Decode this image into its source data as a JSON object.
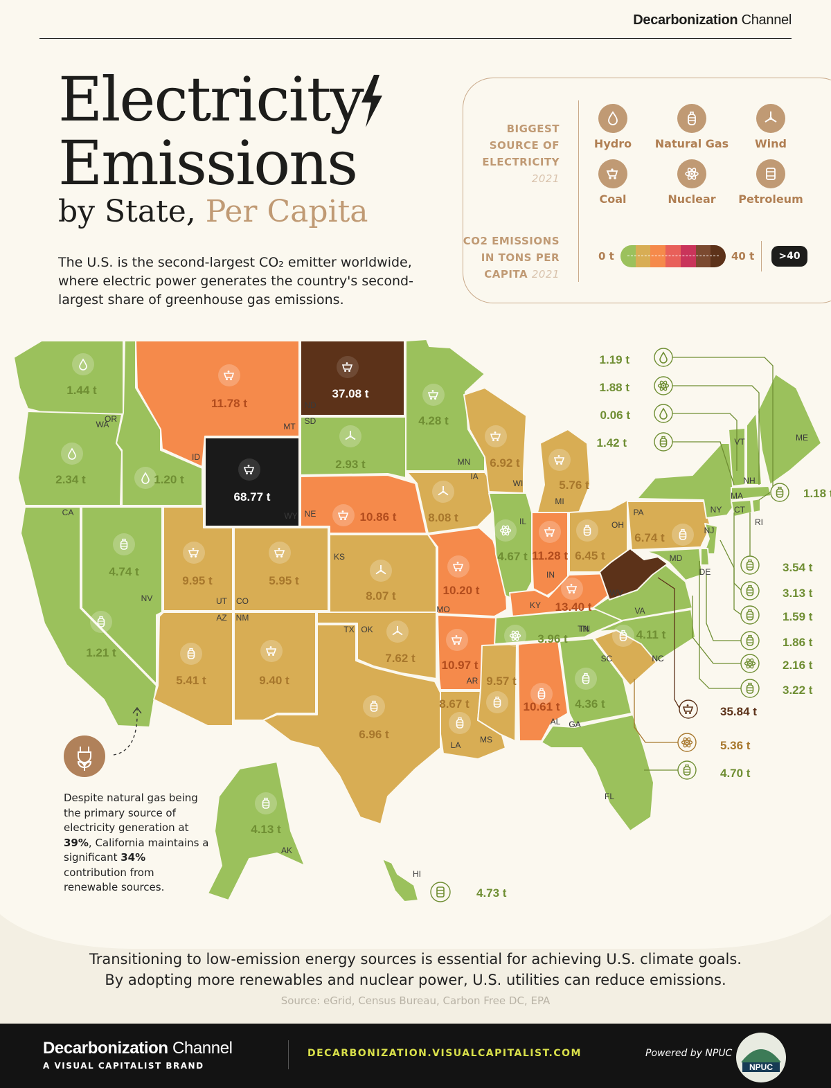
{
  "brand_top": {
    "bold": "Decarbonization",
    "light": " Channel"
  },
  "title": {
    "line1": "Electricity",
    "line2": "Emissions",
    "line3_plain": "by State, ",
    "line3_accent": "Per Capita"
  },
  "intro": "The U.S. is the second-largest CO₂ emitter worldwide, where electric power generates the country's second-largest share of greenhouse gas emissions.",
  "legend": {
    "source_head": [
      "BIGGEST",
      "SOURCE OF",
      "ELECTRICITY"
    ],
    "source_year": "2021",
    "sources": [
      {
        "key": "hydro",
        "label": "Hydro",
        "icon": "droplet-icon"
      },
      {
        "key": "gas",
        "label": "Natural Gas",
        "icon": "gas-canister-icon"
      },
      {
        "key": "wind",
        "label": "Wind",
        "icon": "wind-turbine-icon"
      },
      {
        "key": "coal",
        "label": "Coal",
        "icon": "coal-cart-icon"
      },
      {
        "key": "nuclear",
        "label": "Nuclear",
        "icon": "atom-icon"
      },
      {
        "key": "petroleum",
        "label": "Petroleum",
        "icon": "oil-barrel-icon"
      }
    ],
    "emis_head": [
      "CO2 EMISSIONS",
      "IN TONS PER",
      "CAPITA"
    ],
    "emis_year": "2021",
    "scale_min": "0 t",
    "scale_max": "40 t",
    "scale_over": ">40",
    "scale_colors": [
      "#9bc15c",
      "#d8ad54",
      "#f58a4b",
      "#e8605a",
      "#c9345a",
      "#7b4a30",
      "#5c3219"
    ]
  },
  "colors": {
    "green": "#9bc15c",
    "tan": "#d8ad54",
    "orange": "#f58a4b",
    "brown": "#5c3219",
    "black": "#1a1a1a",
    "label_green": "#6f8e33",
    "label_tan": "#a7772c",
    "label_orange": "#b24c1d",
    "label_brown": "#5c3219"
  },
  "states": {
    "WA": "1.44 t",
    "OR": "2.34 t",
    "ID": "1.20 t",
    "MT": "11.78 t",
    "ND": "37.08 t",
    "SD": "2.93 t",
    "MN": "4.28 t",
    "WY": "68.77 t",
    "NE": "10.86 t",
    "IA": "8.08 t",
    "WI": "6.92 t",
    "MI": "5.76 t",
    "CA": "1.21 t",
    "NV": "4.74 t",
    "UT": "9.95 t",
    "CO": "5.95 t",
    "KS": "8.07 t",
    "MO": "10.20 t",
    "IL": "4.67 t",
    "IN": "11.28 t",
    "OH": "6.45 t",
    "PA": "6.74 t",
    "KY": "13.40 t",
    "AZ": "5.41 t",
    "NM": "9.40 t",
    "OK": "7.62 t",
    "AR": "10.97 t",
    "TN": "3.96 t",
    "NC": "4.11 t",
    "TX": "6.96 t",
    "LA": "8.67 t",
    "MS": "9.57 t",
    "AL": "10.61 t",
    "GA": "4.36 t",
    "AK": "4.13 t",
    "HI": "4.73 t"
  },
  "callouts": {
    "VT": "1.19 t",
    "NH": "1.88 t",
    "ME": "0.06 t",
    "MA": "1.42 t",
    "RI": "1.18 t",
    "CT": "3.54 t",
    "NJ": "3.13 t",
    "DE": "1.59 t",
    "MD": "1.86 t",
    "VA": "2.16 t",
    "NY": "3.22 t",
    "WV": "35.84 t",
    "SC": "5.36 t",
    "FL": "4.70 t"
  },
  "note": {
    "pre": "Despite natural gas being the primary source of electricity generation at ",
    "pct1": "39%",
    "mid": ", California maintains a significant ",
    "pct2": "34%",
    "post": " contribution from renewable sources."
  },
  "closing": [
    "Transitioning to low-emission energy sources is essential for achieving U.S. climate goals.",
    "By adopting more renewables and nuclear power, U.S. utilities can reduce emissions."
  ],
  "source": "Source: eGrid, Census Bureau, Carbon Free DC, EPA",
  "footer": {
    "brand_bold": "Decarbonization",
    "brand_light": " Channel",
    "sub": "A VISUAL CAPITALIST BRAND",
    "url": "DECARBONIZATION.VISUALCAPITALIST.COM",
    "powered": "Powered by NPUC",
    "logo_text": "NPUC"
  }
}
